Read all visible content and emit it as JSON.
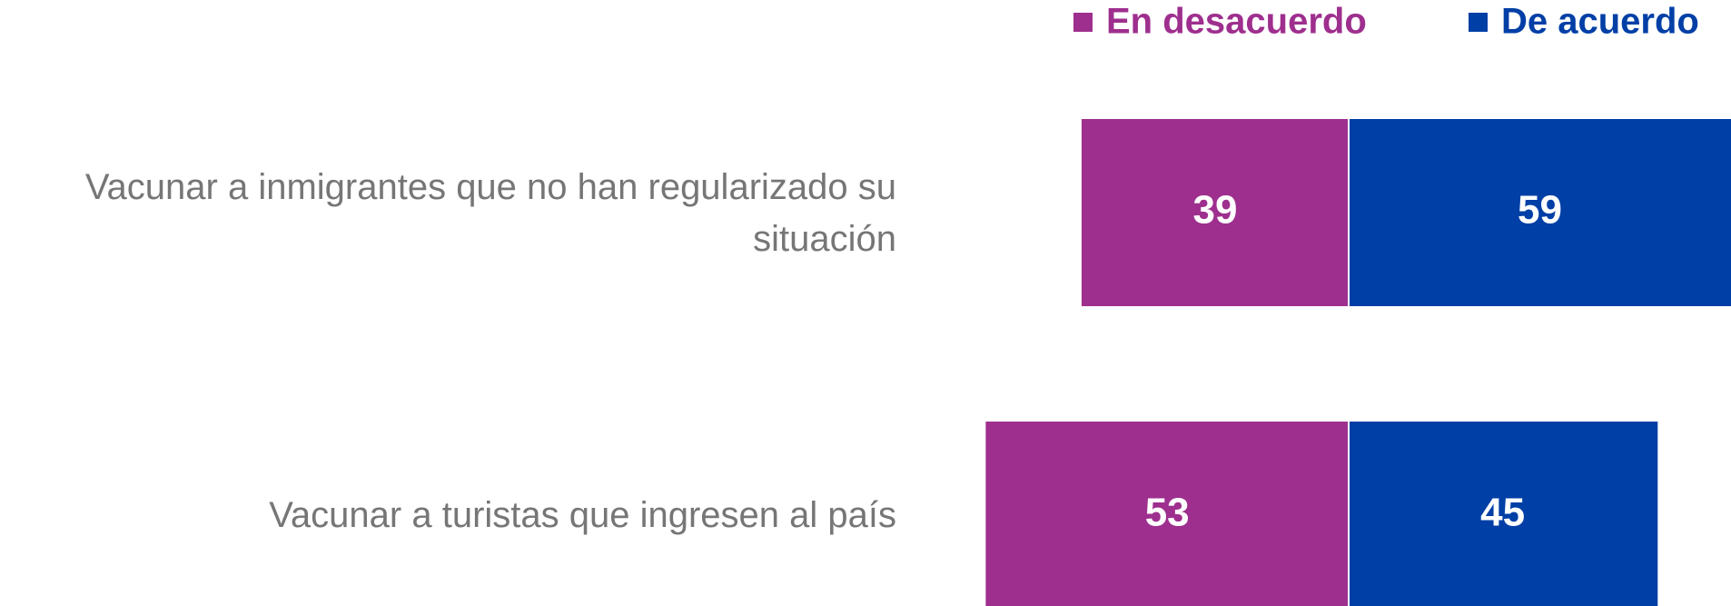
{
  "chart_data": {
    "type": "bar",
    "categories": [
      "Vacunar a inmigrantes que no han regularizado su situación",
      "Vacunar a turistas que ingresen al país"
    ],
    "series": [
      {
        "name": "En desacuerdo",
        "color": "#9e2f8e",
        "values": [
          39,
          53
        ]
      },
      {
        "name": "De acuerdo",
        "color": "#003fa6",
        "values": [
          59,
          45
        ]
      }
    ]
  }
}
